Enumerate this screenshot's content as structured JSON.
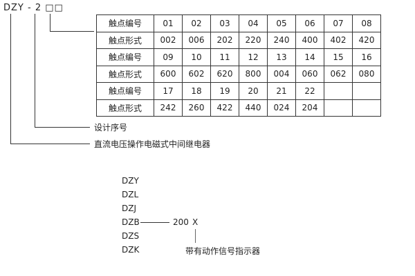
{
  "model_code": "DZY - 2 □□",
  "table": {
    "rows": [
      {
        "label": "触点编号",
        "cells": [
          "01",
          "02",
          "03",
          "04",
          "05",
          "06",
          "07",
          "08"
        ]
      },
      {
        "label": "触点形式",
        "cells": [
          "002",
          "006",
          "202",
          "220",
          "240",
          "400",
          "402",
          "420"
        ]
      },
      {
        "label": "触点编号",
        "cells": [
          "09",
          "10",
          "11",
          "12",
          "13",
          "14",
          "15",
          "16"
        ]
      },
      {
        "label": "触点形式",
        "cells": [
          "600",
          "602",
          "620",
          "800",
          "004",
          "060",
          "062",
          "080"
        ]
      },
      {
        "label": "触点编号",
        "cells": [
          "17",
          "18",
          "19",
          "20",
          "21",
          "22",
          "",
          ""
        ]
      },
      {
        "label": "触点形式",
        "cells": [
          "242",
          "260",
          "422",
          "440",
          "024",
          "204",
          "",
          ""
        ]
      }
    ]
  },
  "design_serial_label": "设计序号",
  "relay_type_label": "直流电压操作电磁式中间继电器",
  "series": [
    "DZY",
    "DZL",
    "DZJ",
    "DZB",
    "DZS",
    "DZK"
  ],
  "example": {
    "code": "200",
    "suffix": "X",
    "suffix_label": "带有动作信号指示器"
  }
}
